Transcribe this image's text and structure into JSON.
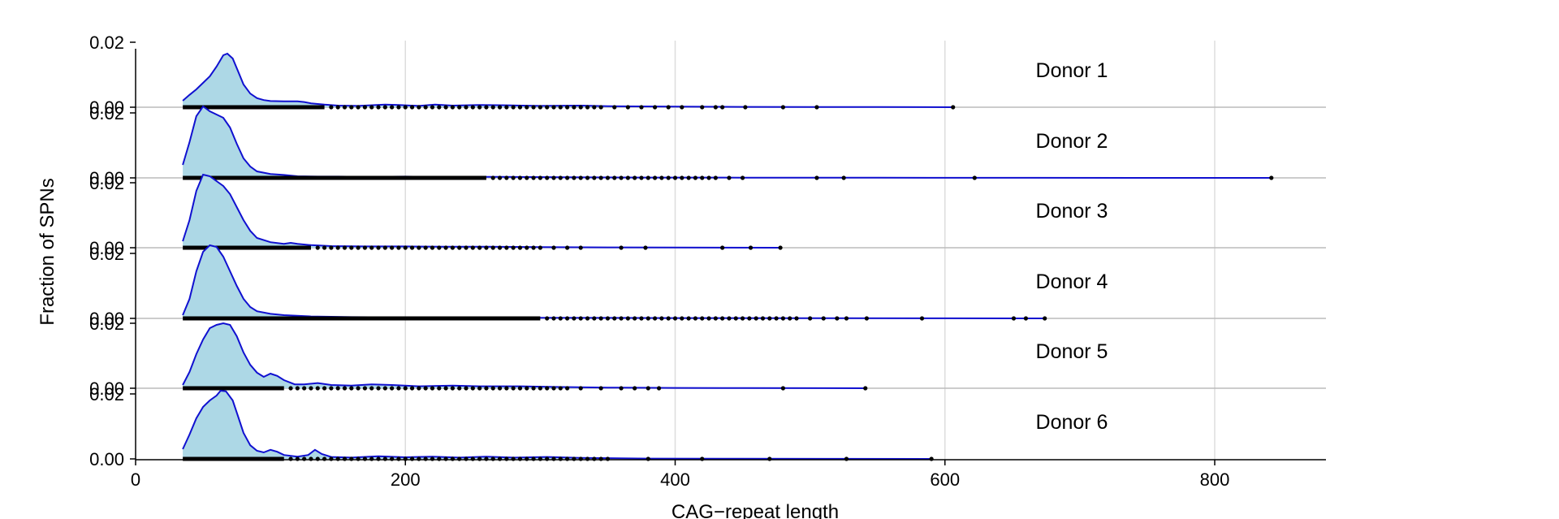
{
  "chart_data": {
    "type": "area",
    "subtype": "stacked ridgeline density plots with rug points",
    "xlabel": "CAG−repeat length",
    "ylabel": "Fraction of SPNs",
    "xlim": [
      0,
      880
    ],
    "ylim": [
      0,
      0.025
    ],
    "x_ticks": [
      0,
      200,
      400,
      600,
      800
    ],
    "x_tick_labels": [
      "0",
      "200",
      "400",
      "600",
      "800"
    ],
    "y_tick_labels": [
      "0.02",
      "0.00"
    ],
    "grid": "vertical only",
    "colors": {
      "fill": "#add8e6",
      "line": "#1010d0",
      "points": "#000000",
      "grid": "#dddddd",
      "baseline": "#bbbbbb"
    },
    "panels": [
      {
        "label": "Donor 1",
        "density": [
          [
            35,
            0.002
          ],
          [
            40,
            0.0038
          ],
          [
            45,
            0.0055
          ],
          [
            50,
            0.0075
          ],
          [
            55,
            0.0095
          ],
          [
            60,
            0.0125
          ],
          [
            65,
            0.016
          ],
          [
            68,
            0.0165
          ],
          [
            72,
            0.015
          ],
          [
            76,
            0.011
          ],
          [
            80,
            0.007
          ],
          [
            85,
            0.0042
          ],
          [
            90,
            0.0028
          ],
          [
            95,
            0.0022
          ],
          [
            100,
            0.0019
          ],
          [
            110,
            0.0018
          ],
          [
            120,
            0.0018
          ],
          [
            125,
            0.0016
          ],
          [
            130,
            0.0012
          ],
          [
            140,
            0.0008
          ],
          [
            150,
            0.0005
          ],
          [
            165,
            0.0004
          ],
          [
            185,
            0.0008
          ],
          [
            195,
            0.0007
          ],
          [
            210,
            0.0004
          ],
          [
            222,
            0.0008
          ],
          [
            235,
            0.0005
          ],
          [
            255,
            0.0007
          ],
          [
            275,
            0.0006
          ],
          [
            300,
            0.0004
          ],
          [
            330,
            0.0005
          ],
          [
            350,
            0.0003
          ],
          [
            400,
            0.0002
          ],
          [
            450,
            0.0001
          ],
          [
            500,
            8e-05
          ],
          [
            550,
            4e-05
          ],
          [
            606,
            0
          ]
        ],
        "dense_end": 140,
        "sparse_points": [
          145,
          150,
          155,
          160,
          165,
          170,
          175,
          180,
          185,
          190,
          195,
          200,
          205,
          210,
          215,
          220,
          225,
          230,
          235,
          240,
          245,
          250,
          255,
          260,
          265,
          270,
          275,
          280,
          285,
          290,
          295,
          300,
          305,
          310,
          315,
          320,
          325,
          330,
          335,
          340,
          345,
          355,
          365,
          375,
          385,
          395,
          405,
          420,
          430,
          435,
          452,
          480,
          505,
          606
        ]
      },
      {
        "label": "Donor 2",
        "density": [
          [
            35,
            0.004
          ],
          [
            40,
            0.011
          ],
          [
            45,
            0.019
          ],
          [
            50,
            0.022
          ],
          [
            55,
            0.0205
          ],
          [
            60,
            0.0195
          ],
          [
            65,
            0.0185
          ],
          [
            70,
            0.0155
          ],
          [
            75,
            0.0105
          ],
          [
            80,
            0.006
          ],
          [
            85,
            0.0035
          ],
          [
            90,
            0.002
          ],
          [
            100,
            0.0012
          ],
          [
            110,
            0.0009
          ],
          [
            120,
            0.0005
          ],
          [
            135,
            0.0004
          ],
          [
            150,
            0.0004
          ],
          [
            170,
            0.0003
          ],
          [
            200,
            0.0004
          ],
          [
            230,
            0.0003
          ],
          [
            270,
            0.0003
          ],
          [
            320,
            0.0002
          ],
          [
            380,
            0.0001
          ],
          [
            450,
            8e-05
          ],
          [
            550,
            4e-05
          ],
          [
            650,
            2e-05
          ],
          [
            842,
            0
          ]
        ],
        "dense_end": 260,
        "sparse_points": [
          265,
          270,
          275,
          280,
          285,
          290,
          295,
          300,
          305,
          310,
          315,
          320,
          325,
          330,
          335,
          340,
          345,
          350,
          355,
          360,
          365,
          370,
          375,
          380,
          385,
          390,
          395,
          400,
          405,
          410,
          415,
          420,
          425,
          430,
          440,
          450,
          505,
          525,
          622,
          842
        ]
      },
      {
        "label": "Donor 3",
        "density": [
          [
            35,
            0.002
          ],
          [
            40,
            0.0085
          ],
          [
            45,
            0.0175
          ],
          [
            50,
            0.0225
          ],
          [
            55,
            0.022
          ],
          [
            60,
            0.0205
          ],
          [
            65,
            0.019
          ],
          [
            70,
            0.0165
          ],
          [
            75,
            0.0125
          ],
          [
            80,
            0.0085
          ],
          [
            85,
            0.0052
          ],
          [
            90,
            0.003
          ],
          [
            100,
            0.0017
          ],
          [
            110,
            0.0012
          ],
          [
            115,
            0.0015
          ],
          [
            120,
            0.0012
          ],
          [
            130,
            0.0008
          ],
          [
            145,
            0.0005
          ],
          [
            170,
            0.0004
          ],
          [
            200,
            0.0004
          ],
          [
            230,
            0.0003
          ],
          [
            260,
            0.0003
          ],
          [
            300,
            0.0002
          ],
          [
            350,
            0.0001
          ],
          [
            400,
            6e-05
          ],
          [
            478,
            0
          ]
        ],
        "dense_end": 130,
        "sparse_points": [
          135,
          140,
          145,
          150,
          155,
          160,
          165,
          170,
          175,
          180,
          185,
          190,
          195,
          200,
          205,
          210,
          215,
          220,
          225,
          230,
          235,
          240,
          245,
          250,
          255,
          260,
          265,
          270,
          275,
          280,
          285,
          290,
          295,
          300,
          310,
          320,
          330,
          360,
          378,
          435,
          456,
          478
        ]
      },
      {
        "label": "Donor 4",
        "density": [
          [
            35,
            0.001
          ],
          [
            40,
            0.006
          ],
          [
            45,
            0.0145
          ],
          [
            50,
            0.0205
          ],
          [
            55,
            0.0225
          ],
          [
            60,
            0.022
          ],
          [
            65,
            0.019
          ],
          [
            70,
            0.0145
          ],
          [
            75,
            0.01
          ],
          [
            80,
            0.006
          ],
          [
            85,
            0.0035
          ],
          [
            90,
            0.0022
          ],
          [
            100,
            0.0014
          ],
          [
            110,
            0.001
          ],
          [
            130,
            0.0006
          ],
          [
            160,
            0.0004
          ],
          [
            200,
            0.0003
          ],
          [
            250,
            0.0003
          ],
          [
            300,
            0.0002
          ],
          [
            400,
            0.0001
          ],
          [
            500,
            6e-05
          ],
          [
            600,
            3e-05
          ],
          [
            674,
            0
          ]
        ],
        "dense_end": 300,
        "sparse_points": [
          305,
          310,
          315,
          320,
          325,
          330,
          335,
          340,
          345,
          350,
          355,
          360,
          365,
          370,
          375,
          380,
          385,
          390,
          395,
          400,
          405,
          410,
          415,
          420,
          425,
          430,
          435,
          440,
          445,
          450,
          455,
          460,
          465,
          470,
          475,
          480,
          485,
          490,
          500,
          510,
          520,
          527,
          542,
          583,
          651,
          660,
          674
        ]
      },
      {
        "label": "Donor 5",
        "density": [
          [
            35,
            0.001
          ],
          [
            40,
            0.005
          ],
          [
            45,
            0.0105
          ],
          [
            50,
            0.015
          ],
          [
            55,
            0.0185
          ],
          [
            60,
            0.0195
          ],
          [
            65,
            0.02
          ],
          [
            70,
            0.0195
          ],
          [
            75,
            0.016
          ],
          [
            80,
            0.011
          ],
          [
            85,
            0.0072
          ],
          [
            90,
            0.0048
          ],
          [
            95,
            0.0035
          ],
          [
            100,
            0.0045
          ],
          [
            105,
            0.0038
          ],
          [
            110,
            0.0025
          ],
          [
            118,
            0.0012
          ],
          [
            125,
            0.0012
          ],
          [
            135,
            0.0016
          ],
          [
            145,
            0.001
          ],
          [
            160,
            0.0008
          ],
          [
            175,
            0.0012
          ],
          [
            190,
            0.001
          ],
          [
            210,
            0.0006
          ],
          [
            235,
            0.0008
          ],
          [
            255,
            0.0006
          ],
          [
            285,
            0.0006
          ],
          [
            310,
            0.0004
          ],
          [
            350,
            0.0002
          ],
          [
            400,
            0.0001
          ],
          [
            450,
            6e-05
          ],
          [
            541,
            0
          ]
        ],
        "dense_end": 110,
        "sparse_points": [
          115,
          120,
          125,
          130,
          135,
          140,
          145,
          150,
          155,
          160,
          165,
          170,
          175,
          180,
          185,
          190,
          195,
          200,
          205,
          210,
          215,
          220,
          225,
          230,
          235,
          240,
          245,
          250,
          255,
          260,
          265,
          270,
          275,
          280,
          285,
          290,
          295,
          300,
          305,
          310,
          315,
          320,
          330,
          345,
          360,
          370,
          380,
          388,
          480,
          541
        ]
      },
      {
        "label": "Donor 6",
        "density": [
          [
            35,
            0.003
          ],
          [
            40,
            0.0075
          ],
          [
            45,
            0.0125
          ],
          [
            50,
            0.016
          ],
          [
            55,
            0.018
          ],
          [
            60,
            0.0195
          ],
          [
            63,
            0.021
          ],
          [
            67,
            0.0208
          ],
          [
            72,
            0.018
          ],
          [
            76,
            0.013
          ],
          [
            80,
            0.008
          ],
          [
            85,
            0.0042
          ],
          [
            90,
            0.0025
          ],
          [
            95,
            0.002
          ],
          [
            100,
            0.0028
          ],
          [
            105,
            0.0022
          ],
          [
            110,
            0.0012
          ],
          [
            120,
            0.0007
          ],
          [
            128,
            0.0012
          ],
          [
            133,
            0.0028
          ],
          [
            138,
            0.0015
          ],
          [
            145,
            0.0006
          ],
          [
            160,
            0.0004
          ],
          [
            180,
            0.0008
          ],
          [
            200,
            0.0005
          ],
          [
            220,
            0.0007
          ],
          [
            240,
            0.0004
          ],
          [
            260,
            0.0007
          ],
          [
            280,
            0.0004
          ],
          [
            305,
            0.0006
          ],
          [
            330,
            0.0003
          ],
          [
            380,
            0.0001
          ],
          [
            450,
            6e-05
          ],
          [
            520,
            3e-05
          ],
          [
            590,
            0
          ]
        ],
        "dense_end": 110,
        "sparse_points": [
          115,
          120,
          125,
          130,
          135,
          140,
          145,
          150,
          155,
          160,
          165,
          170,
          175,
          180,
          185,
          190,
          195,
          200,
          205,
          210,
          215,
          220,
          225,
          230,
          235,
          240,
          245,
          250,
          255,
          260,
          265,
          270,
          275,
          280,
          285,
          290,
          295,
          300,
          305,
          310,
          315,
          320,
          325,
          330,
          335,
          340,
          345,
          350,
          380,
          420,
          470,
          527,
          590
        ]
      }
    ]
  }
}
